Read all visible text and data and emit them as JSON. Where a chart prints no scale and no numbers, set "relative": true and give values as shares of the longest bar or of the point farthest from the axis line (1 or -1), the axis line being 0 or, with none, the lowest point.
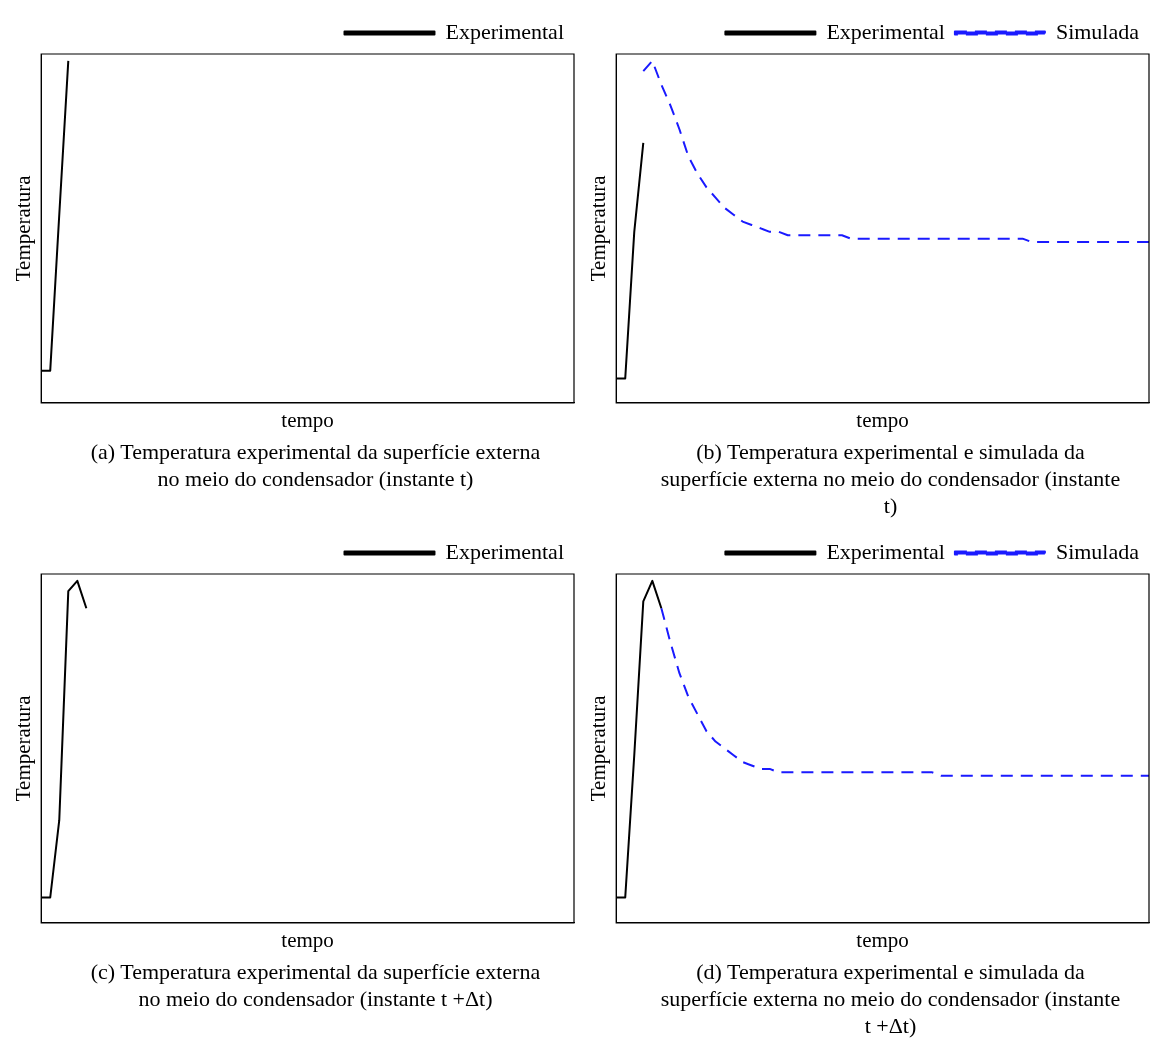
{
  "chart_data": [
    {
      "type": "line",
      "relative": true,
      "title": "(a) Temperatura experimental da superfície externa no meio do condensador (instante t)",
      "xlabel": "tempo",
      "ylabel": "Temperatura",
      "legend": "top right",
      "grid": false,
      "categories": [
        null,
        null,
        null,
        null,
        null,
        null,
        null,
        null,
        null,
        null,
        null,
        null,
        null,
        null,
        null,
        null,
        null,
        null,
        null,
        null,
        null,
        null,
        null,
        null,
        null,
        null,
        null,
        null,
        null,
        null,
        null,
        null,
        null,
        null,
        null,
        null,
        null,
        null,
        null,
        null,
        null,
        null,
        null,
        null,
        null,
        null,
        null,
        null,
        null,
        null,
        null,
        null,
        null,
        null,
        null,
        null,
        null,
        null,
        null,
        null
      ],
      "series": [
        {
          "name": "Experimental",
          "color": "#000000",
          "line_style": "solid",
          "values": [
            0.094,
            0.094,
            0.55,
            1.0,
            null,
            null,
            null,
            null,
            null,
            null,
            null,
            null,
            null,
            null,
            null,
            null,
            null,
            null,
            null,
            null,
            null,
            null,
            null,
            null,
            null,
            null,
            null,
            null,
            null,
            null,
            null,
            null,
            null,
            null,
            null,
            null,
            null,
            null,
            null,
            null,
            null,
            null,
            null,
            null,
            null,
            null,
            null,
            null,
            null,
            null,
            null,
            null,
            null,
            null,
            null,
            null,
            null,
            null,
            null,
            null
          ]
        }
      ]
    },
    {
      "type": "line",
      "relative": true,
      "title": "(b) Temperatura experimental e simulada da superfície externa no meio do condensador (instante t)",
      "xlabel": "tempo",
      "ylabel": "Temperatura",
      "legend": "top right",
      "grid": false,
      "categories": [
        null,
        null,
        null,
        null,
        null,
        null,
        null,
        null,
        null,
        null,
        null,
        null,
        null,
        null,
        null,
        null,
        null,
        null,
        null,
        null,
        null,
        null,
        null,
        null,
        null,
        null,
        null,
        null,
        null,
        null,
        null,
        null,
        null,
        null,
        null,
        null,
        null,
        null,
        null,
        null,
        null,
        null,
        null,
        null,
        null,
        null,
        null,
        null,
        null,
        null,
        null,
        null,
        null,
        null,
        null,
        null,
        null,
        null,
        null,
        null
      ],
      "series": [
        {
          "name": "Experimental",
          "color": "#000000",
          "line_style": "solid",
          "values": [
            0.071,
            0.071,
            0.5,
            0.76,
            null,
            null,
            null,
            null,
            null,
            null,
            null,
            null,
            null,
            null,
            null,
            null,
            null,
            null,
            null,
            null,
            null,
            null,
            null,
            null,
            null,
            null,
            null,
            null,
            null,
            null,
            null,
            null,
            null,
            null,
            null,
            null,
            null,
            null,
            null,
            null,
            null,
            null,
            null,
            null,
            null,
            null,
            null,
            null,
            null,
            null,
            null,
            null,
            null,
            null,
            null,
            null,
            null,
            null,
            null,
            null
          ]
        },
        {
          "name": "Simulada",
          "color": "#1a1aff",
          "line_style": "dashed",
          "values": [
            null,
            null,
            null,
            0.97,
            1.0,
            0.93,
            0.87,
            0.8,
            0.72,
            0.67,
            0.63,
            0.6,
            0.57,
            0.55,
            0.53,
            0.52,
            0.51,
            0.5,
            0.5,
            0.49,
            0.49,
            0.49,
            0.49,
            0.49,
            0.49,
            0.49,
            0.48,
            0.48,
            0.48,
            0.48,
            0.48,
            0.48,
            0.48,
            0.48,
            0.48,
            0.48,
            0.48,
            0.48,
            0.48,
            0.48,
            0.48,
            0.48,
            0.48,
            0.48,
            0.48,
            0.48,
            0.47,
            0.47,
            0.47,
            0.47,
            0.47,
            0.47,
            0.47,
            0.47,
            0.47,
            0.47,
            0.47,
            0.47,
            0.47,
            0.47
          ]
        }
      ]
    },
    {
      "type": "line",
      "relative": true,
      "title": "(c) Temperatura experimental da superfície externa no meio do condensador (instante t +Δt)",
      "xlabel": "tempo",
      "ylabel": "Temperatura",
      "legend": "top right",
      "grid": false,
      "categories": [
        null,
        null,
        null,
        null,
        null,
        null,
        null,
        null,
        null,
        null,
        null,
        null,
        null,
        null,
        null,
        null,
        null,
        null,
        null,
        null,
        null,
        null,
        null,
        null,
        null,
        null,
        null,
        null,
        null,
        null,
        null,
        null,
        null,
        null,
        null,
        null,
        null,
        null,
        null,
        null,
        null,
        null,
        null,
        null,
        null,
        null,
        null,
        null,
        null,
        null,
        null,
        null,
        null,
        null,
        null,
        null,
        null,
        null,
        null,
        null
      ],
      "series": [
        {
          "name": "Experimental",
          "color": "#000000",
          "line_style": "solid",
          "values": [
            0.074,
            0.074,
            0.3,
            0.97,
            1.0,
            0.92,
            null,
            null,
            null,
            null,
            null,
            null,
            null,
            null,
            null,
            null,
            null,
            null,
            null,
            null,
            null,
            null,
            null,
            null,
            null,
            null,
            null,
            null,
            null,
            null,
            null,
            null,
            null,
            null,
            null,
            null,
            null,
            null,
            null,
            null,
            null,
            null,
            null,
            null,
            null,
            null,
            null,
            null,
            null,
            null,
            null,
            null,
            null,
            null,
            null,
            null,
            null,
            null,
            null,
            null
          ]
        }
      ]
    },
    {
      "type": "line",
      "relative": true,
      "title": "(d) Temperatura experimental e simulada da superfície externa no meio do condensador (instante t +Δt)",
      "xlabel": "tempo",
      "ylabel": "Temperatura",
      "legend": "top right",
      "grid": false,
      "categories": [
        null,
        null,
        null,
        null,
        null,
        null,
        null,
        null,
        null,
        null,
        null,
        null,
        null,
        null,
        null,
        null,
        null,
        null,
        null,
        null,
        null,
        null,
        null,
        null,
        null,
        null,
        null,
        null,
        null,
        null,
        null,
        null,
        null,
        null,
        null,
        null,
        null,
        null,
        null,
        null,
        null,
        null,
        null,
        null,
        null,
        null,
        null,
        null,
        null,
        null,
        null,
        null,
        null,
        null,
        null,
        null,
        null,
        null,
        null,
        null
      ],
      "series": [
        {
          "name": "Experimental",
          "color": "#000000",
          "line_style": "solid",
          "values": [
            0.074,
            0.074,
            0.49,
            0.94,
            1.0,
            0.92,
            null,
            null,
            null,
            null,
            null,
            null,
            null,
            null,
            null,
            null,
            null,
            null,
            null,
            null,
            null,
            null,
            null,
            null,
            null,
            null,
            null,
            null,
            null,
            null,
            null,
            null,
            null,
            null,
            null,
            null,
            null,
            null,
            null,
            null,
            null,
            null,
            null,
            null,
            null,
            null,
            null,
            null,
            null,
            null,
            null,
            null,
            null,
            null,
            null,
            null,
            null,
            null,
            null,
            null
          ]
        },
        {
          "name": "Simulada",
          "color": "#1a1aff",
          "line_style": "dashed",
          "values": [
            null,
            null,
            null,
            null,
            null,
            0.92,
            0.82,
            0.73,
            0.66,
            0.61,
            0.56,
            0.53,
            0.51,
            0.49,
            0.47,
            0.46,
            0.45,
            0.45,
            0.44,
            0.44,
            0.44,
            0.44,
            0.44,
            0.44,
            0.44,
            0.44,
            0.44,
            0.44,
            0.44,
            0.44,
            0.44,
            0.44,
            0.44,
            0.44,
            0.44,
            0.44,
            0.43,
            0.43,
            0.43,
            0.43,
            0.43,
            0.43,
            0.43,
            0.43,
            0.43,
            0.43,
            0.43,
            0.43,
            0.43,
            0.43,
            0.43,
            0.43,
            0.43,
            0.43,
            0.43,
            0.43,
            0.43,
            0.43,
            0.43,
            0.43
          ]
        }
      ]
    }
  ]
}
